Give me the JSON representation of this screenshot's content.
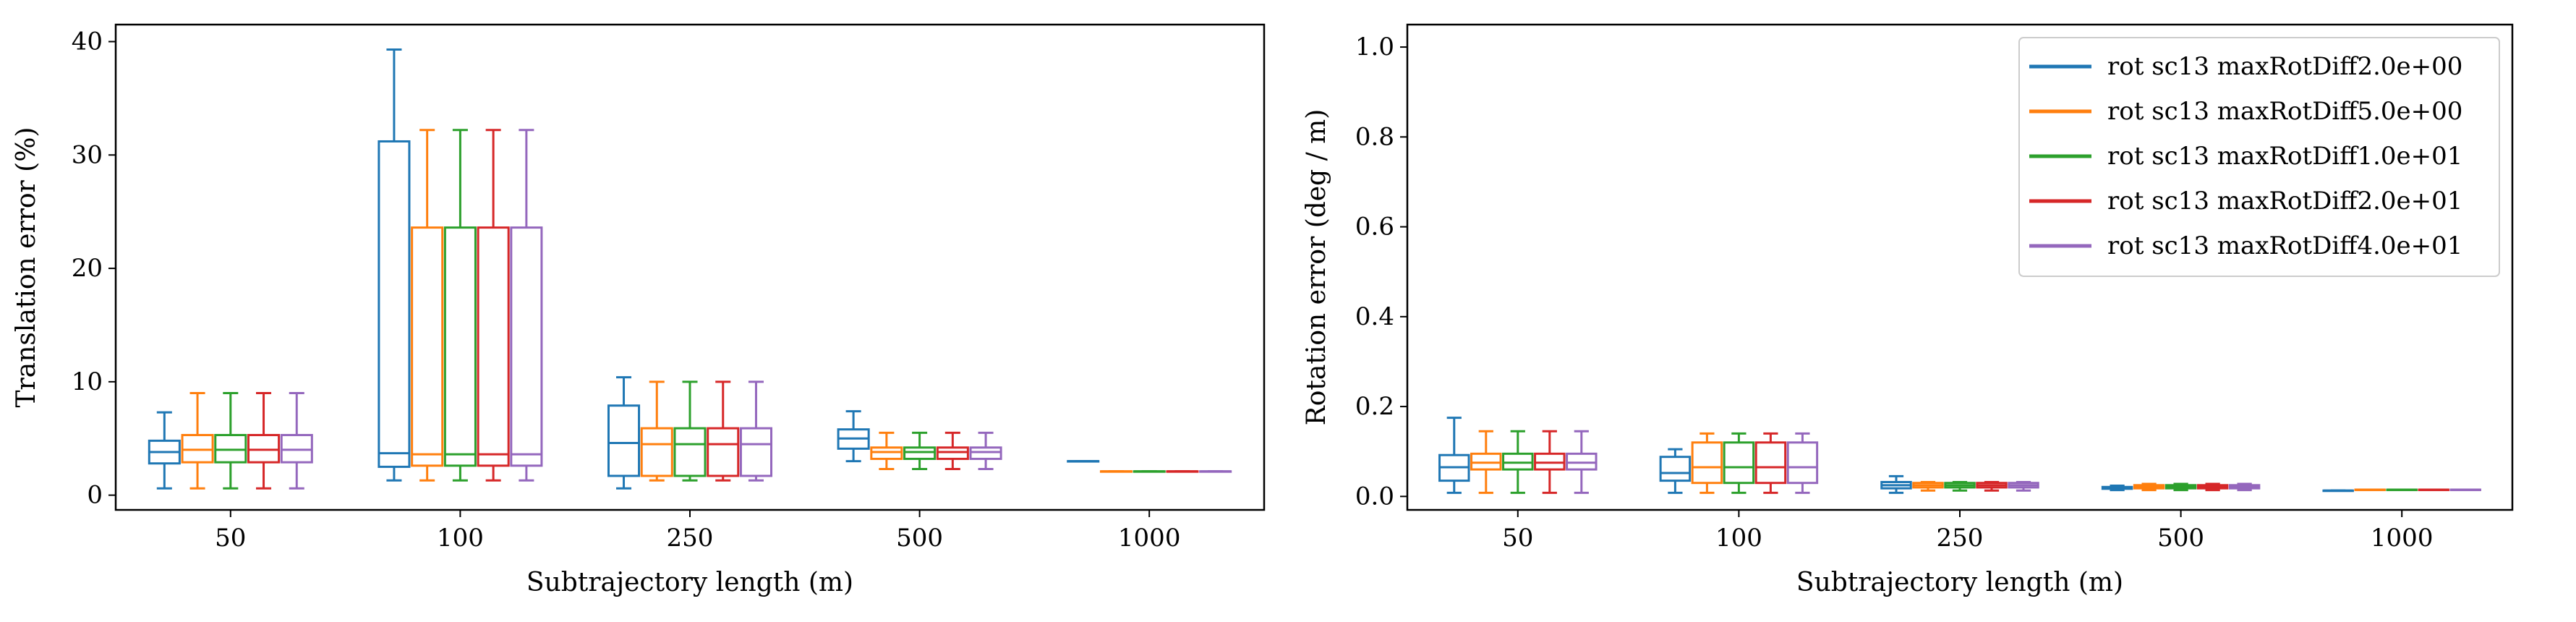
{
  "colors": [
    "#1f77b4",
    "#ff7f0e",
    "#2ca02c",
    "#d62728",
    "#9467bd"
  ],
  "legend": {
    "placement": "upper-right",
    "panel": 1,
    "entries": [
      "rot sc13 maxRotDiff2.0e+00",
      "rot sc13 maxRotDiff5.0e+00",
      "rot sc13 maxRotDiff1.0e+01",
      "rot sc13 maxRotDiff2.0e+01",
      "rot sc13 maxRotDiff4.0e+01"
    ]
  },
  "chart_data": [
    {
      "type": "boxplot",
      "xlabel": "Subtrajectory length (m)",
      "ylabel": "Translation error (%)",
      "ylim": [
        -1.3,
        41.5
      ],
      "yticks": [
        0,
        10,
        20,
        30,
        40
      ],
      "categories": [
        "50",
        "100",
        "250",
        "500",
        "1000"
      ],
      "series": [
        {
          "name": "rot sc13 maxRotDiff2.0e+00",
          "boxes": [
            {
              "whislo": 0.6,
              "q1": 2.8,
              "med": 3.8,
              "q3": 4.8,
              "whishi": 7.3
            },
            {
              "whislo": 1.3,
              "q1": 2.5,
              "med": 3.7,
              "q3": 31.2,
              "whishi": 39.3
            },
            {
              "whislo": 0.6,
              "q1": 1.7,
              "med": 4.6,
              "q3": 7.9,
              "whishi": 10.4
            },
            {
              "whislo": 3.0,
              "q1": 4.1,
              "med": 5.0,
              "q3": 5.8,
              "whishi": 7.4
            },
            {
              "whislo": 3.0,
              "q1": 3.0,
              "med": 3.0,
              "q3": 3.0,
              "whishi": 3.0
            }
          ]
        },
        {
          "name": "rot sc13 maxRotDiff5.0e+00",
          "boxes": [
            {
              "whislo": 0.6,
              "q1": 2.9,
              "med": 4.0,
              "q3": 5.3,
              "whishi": 9.0
            },
            {
              "whislo": 1.3,
              "q1": 2.6,
              "med": 3.6,
              "q3": 23.6,
              "whishi": 32.2
            },
            {
              "whislo": 1.3,
              "q1": 1.7,
              "med": 4.5,
              "q3": 5.9,
              "whishi": 10.0
            },
            {
              "whislo": 2.3,
              "q1": 3.2,
              "med": 3.8,
              "q3": 4.2,
              "whishi": 5.5
            },
            {
              "whislo": 2.1,
              "q1": 2.1,
              "med": 2.1,
              "q3": 2.1,
              "whishi": 2.1
            }
          ]
        },
        {
          "name": "rot sc13 maxRotDiff1.0e+01",
          "boxes": [
            {
              "whislo": 0.6,
              "q1": 2.9,
              "med": 4.0,
              "q3": 5.3,
              "whishi": 9.0
            },
            {
              "whislo": 1.3,
              "q1": 2.6,
              "med": 3.6,
              "q3": 23.6,
              "whishi": 32.2
            },
            {
              "whislo": 1.3,
              "q1": 1.7,
              "med": 4.5,
              "q3": 5.9,
              "whishi": 10.0
            },
            {
              "whislo": 2.3,
              "q1": 3.2,
              "med": 3.8,
              "q3": 4.2,
              "whishi": 5.5
            },
            {
              "whislo": 2.1,
              "q1": 2.1,
              "med": 2.1,
              "q3": 2.1,
              "whishi": 2.1
            }
          ]
        },
        {
          "name": "rot sc13 maxRotDiff2.0e+01",
          "boxes": [
            {
              "whislo": 0.6,
              "q1": 2.9,
              "med": 4.0,
              "q3": 5.3,
              "whishi": 9.0
            },
            {
              "whislo": 1.3,
              "q1": 2.6,
              "med": 3.6,
              "q3": 23.6,
              "whishi": 32.2
            },
            {
              "whislo": 1.3,
              "q1": 1.7,
              "med": 4.5,
              "q3": 5.9,
              "whishi": 10.0
            },
            {
              "whislo": 2.3,
              "q1": 3.2,
              "med": 3.8,
              "q3": 4.2,
              "whishi": 5.5
            },
            {
              "whislo": 2.1,
              "q1": 2.1,
              "med": 2.1,
              "q3": 2.1,
              "whishi": 2.1
            }
          ]
        },
        {
          "name": "rot sc13 maxRotDiff4.0e+01",
          "boxes": [
            {
              "whislo": 0.6,
              "q1": 2.9,
              "med": 4.0,
              "q3": 5.3,
              "whishi": 9.0
            },
            {
              "whislo": 1.3,
              "q1": 2.6,
              "med": 3.6,
              "q3": 23.6,
              "whishi": 32.2
            },
            {
              "whislo": 1.3,
              "q1": 1.7,
              "med": 4.5,
              "q3": 5.9,
              "whishi": 10.0
            },
            {
              "whislo": 2.3,
              "q1": 3.2,
              "med": 3.8,
              "q3": 4.2,
              "whishi": 5.5
            },
            {
              "whislo": 2.1,
              "q1": 2.1,
              "med": 2.1,
              "q3": 2.1,
              "whishi": 2.1
            }
          ]
        }
      ]
    },
    {
      "type": "boxplot",
      "xlabel": "Subtrajectory length (m)",
      "ylabel": "Rotation error (deg / m)",
      "ylim": [
        -0.03,
        1.05
      ],
      "yticks": [
        0.0,
        0.2,
        0.4,
        0.6,
        0.8,
        1.0
      ],
      "ytick_labels": [
        "0.0",
        "0.2",
        "0.4",
        "0.6",
        "0.8",
        "1.0"
      ],
      "categories": [
        "50",
        "100",
        "250",
        "500",
        "1000"
      ],
      "series": [
        {
          "name": "rot sc13 maxRotDiff2.0e+00",
          "boxes": [
            {
              "whislo": 0.008,
              "q1": 0.035,
              "med": 0.065,
              "q3": 0.092,
              "whishi": 0.175
            },
            {
              "whislo": 0.008,
              "q1": 0.035,
              "med": 0.052,
              "q3": 0.088,
              "whishi": 0.105
            },
            {
              "whislo": 0.008,
              "q1": 0.018,
              "med": 0.025,
              "q3": 0.032,
              "whishi": 0.045
            },
            {
              "whislo": 0.014,
              "q1": 0.017,
              "med": 0.019,
              "q3": 0.021,
              "whishi": 0.024
            },
            {
              "whislo": 0.013,
              "q1": 0.013,
              "med": 0.013,
              "q3": 0.013,
              "whishi": 0.013
            }
          ]
        },
        {
          "name": "rot sc13 maxRotDiff5.0e+00",
          "boxes": [
            {
              "whislo": 0.008,
              "q1": 0.06,
              "med": 0.075,
              "q3": 0.095,
              "whishi": 0.145
            },
            {
              "whislo": 0.008,
              "q1": 0.03,
              "med": 0.065,
              "q3": 0.12,
              "whishi": 0.14
            },
            {
              "whislo": 0.013,
              "q1": 0.02,
              "med": 0.025,
              "q3": 0.03,
              "whishi": 0.032
            },
            {
              "whislo": 0.014,
              "q1": 0.018,
              "med": 0.021,
              "q3": 0.025,
              "whishi": 0.028
            },
            {
              "whislo": 0.015,
              "q1": 0.015,
              "med": 0.015,
              "q3": 0.015,
              "whishi": 0.015
            }
          ]
        },
        {
          "name": "rot sc13 maxRotDiff1.0e+01",
          "boxes": [
            {
              "whislo": 0.008,
              "q1": 0.06,
              "med": 0.075,
              "q3": 0.095,
              "whishi": 0.145
            },
            {
              "whislo": 0.008,
              "q1": 0.03,
              "med": 0.065,
              "q3": 0.12,
              "whishi": 0.14
            },
            {
              "whislo": 0.013,
              "q1": 0.02,
              "med": 0.025,
              "q3": 0.03,
              "whishi": 0.032
            },
            {
              "whislo": 0.014,
              "q1": 0.018,
              "med": 0.021,
              "q3": 0.025,
              "whishi": 0.028
            },
            {
              "whislo": 0.015,
              "q1": 0.015,
              "med": 0.015,
              "q3": 0.015,
              "whishi": 0.015
            }
          ]
        },
        {
          "name": "rot sc13 maxRotDiff2.0e+01",
          "boxes": [
            {
              "whislo": 0.008,
              "q1": 0.06,
              "med": 0.075,
              "q3": 0.095,
              "whishi": 0.145
            },
            {
              "whislo": 0.008,
              "q1": 0.03,
              "med": 0.065,
              "q3": 0.12,
              "whishi": 0.14
            },
            {
              "whislo": 0.013,
              "q1": 0.02,
              "med": 0.025,
              "q3": 0.03,
              "whishi": 0.032
            },
            {
              "whislo": 0.014,
              "q1": 0.018,
              "med": 0.021,
              "q3": 0.025,
              "whishi": 0.028
            },
            {
              "whislo": 0.015,
              "q1": 0.015,
              "med": 0.015,
              "q3": 0.015,
              "whishi": 0.015
            }
          ]
        },
        {
          "name": "rot sc13 maxRotDiff4.0e+01",
          "boxes": [
            {
              "whislo": 0.008,
              "q1": 0.06,
              "med": 0.075,
              "q3": 0.095,
              "whishi": 0.145
            },
            {
              "whislo": 0.008,
              "q1": 0.03,
              "med": 0.065,
              "q3": 0.12,
              "whishi": 0.14
            },
            {
              "whislo": 0.013,
              "q1": 0.02,
              "med": 0.025,
              "q3": 0.03,
              "whishi": 0.032
            },
            {
              "whislo": 0.014,
              "q1": 0.018,
              "med": 0.021,
              "q3": 0.025,
              "whishi": 0.028
            },
            {
              "whislo": 0.015,
              "q1": 0.015,
              "med": 0.015,
              "q3": 0.015,
              "whishi": 0.015
            }
          ]
        }
      ]
    }
  ]
}
